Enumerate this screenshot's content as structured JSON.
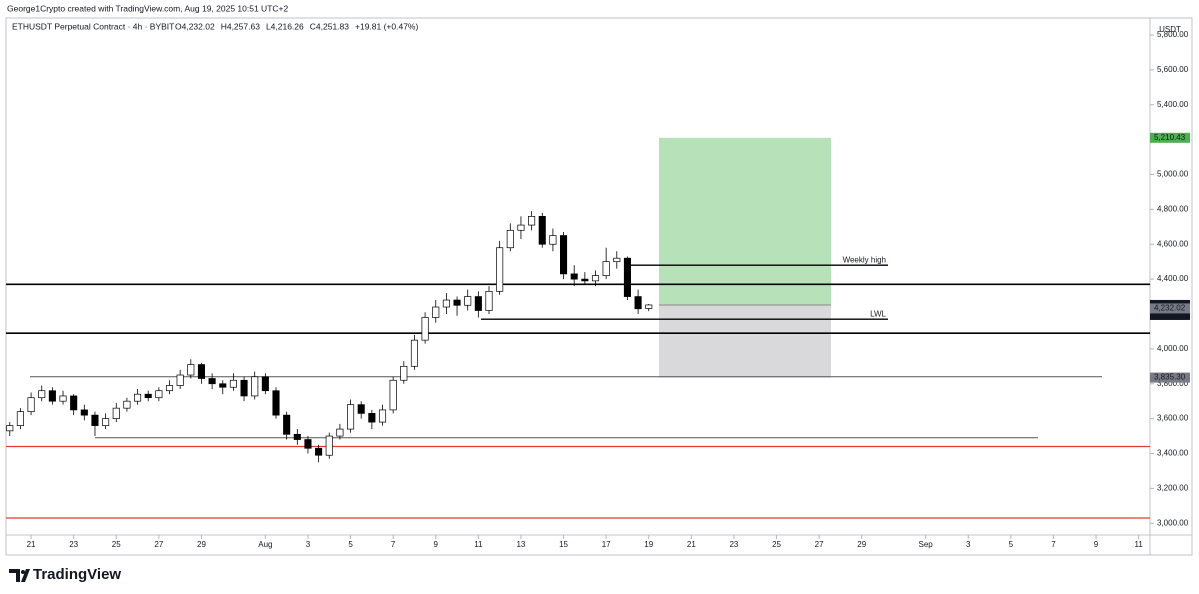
{
  "header": {
    "credit": "George1Crypto created with TradingView.com, Aug 19, 2025 10:51 UTC+2",
    "symbol": "ETHUSDT Perpetual Contract · 4h · BYBIT",
    "ohlc": [
      "O4,232.02",
      "H4,257.63",
      "L4,216.26",
      "C4,251.83",
      "+19.81 (+0.47%)"
    ]
  },
  "footer": {
    "logo": "TradingView"
  },
  "chart_data": {
    "type": "candlestick",
    "axis_unit": "USDT",
    "x": [
      -1,
      -0.5,
      0,
      0.5,
      1,
      1.5,
      2,
      2.5,
      3,
      3.5,
      4,
      4.5,
      5,
      5.5,
      6,
      6.5,
      7,
      7.5,
      8,
      8.5,
      9,
      9.5,
      10,
      10.5,
      11,
      11.5,
      12,
      12.5,
      13,
      13.5,
      14,
      14.5,
      15,
      15.5,
      16,
      16.5,
      17,
      17.5,
      18,
      18.5,
      19,
      19.5,
      20,
      20.5,
      21,
      21.5,
      22,
      22.5,
      23,
      23.5,
      24,
      24.5,
      25,
      25.5,
      26,
      26.5,
      27,
      27.5,
      28,
      28.5,
      29
    ],
    "open": [
      3530,
      3560,
      3640,
      3720,
      3760,
      3700,
      3730,
      3650,
      3620,
      3560,
      3600,
      3660,
      3700,
      3740,
      3720,
      3760,
      3790,
      3850,
      3910,
      3830,
      3800,
      3780,
      3820,
      3730,
      3840,
      3760,
      3620,
      3510,
      3480,
      3430,
      3390,
      3500,
      3540,
      3680,
      3630,
      3580,
      3650,
      3820,
      3900,
      4050,
      4180,
      4240,
      4280,
      4250,
      4300,
      4220,
      4330,
      4580,
      4680,
      4710,
      4760,
      4600,
      4650,
      4430,
      4400,
      4390,
      4420,
      4500,
      4520,
      4300,
      4232.02
    ],
    "high": [
      3580,
      3660,
      3750,
      3790,
      3780,
      3760,
      3740,
      3680,
      3640,
      3630,
      3690,
      3720,
      3770,
      3760,
      3780,
      3820,
      3880,
      3940,
      3920,
      3860,
      3820,
      3860,
      3840,
      3870,
      3860,
      3780,
      3640,
      3540,
      3500,
      3450,
      3520,
      3570,
      3710,
      3700,
      3650,
      3680,
      3840,
      3930,
      4080,
      4210,
      4280,
      4320,
      4300,
      4340,
      4330,
      4360,
      4620,
      4720,
      4760,
      4790,
      4780,
      4690,
      4670,
      4480,
      4440,
      4450,
      4580,
      4560,
      4530,
      4340,
      4257.63
    ],
    "low": [
      3500,
      3540,
      3620,
      3700,
      3680,
      3680,
      3620,
      3590,
      3500,
      3540,
      3580,
      3640,
      3680,
      3700,
      3700,
      3740,
      3770,
      3830,
      3800,
      3770,
      3740,
      3760,
      3700,
      3710,
      3740,
      3600,
      3480,
      3450,
      3400,
      3350,
      3370,
      3480,
      3520,
      3600,
      3540,
      3560,
      3630,
      3800,
      3880,
      4030,
      4150,
      4200,
      4190,
      4220,
      4180,
      4200,
      4310,
      4560,
      4630,
      4680,
      4580,
      4560,
      4400,
      4360,
      4370,
      4360,
      4400,
      4460,
      4280,
      4200,
      4216.26
    ],
    "close": [
      3560,
      3640,
      3720,
      3760,
      3700,
      3730,
      3650,
      3620,
      3560,
      3600,
      3660,
      3700,
      3740,
      3720,
      3760,
      3790,
      3850,
      3910,
      3830,
      3800,
      3780,
      3820,
      3730,
      3840,
      3760,
      3620,
      3510,
      3480,
      3430,
      3390,
      3500,
      3540,
      3680,
      3630,
      3580,
      3650,
      3820,
      3900,
      4050,
      4180,
      4240,
      4280,
      4250,
      4300,
      4220,
      4330,
      4580,
      4680,
      4710,
      4760,
      4600,
      4650,
      4430,
      4400,
      4390,
      4420,
      4500,
      4520,
      4300,
      4230,
      4251.83
    ],
    "xlim": [
      -1.13,
      52.44
    ],
    "xticks": [
      {
        "value": 0,
        "label": "21"
      },
      {
        "value": 2,
        "label": "23"
      },
      {
        "value": 4,
        "label": "25"
      },
      {
        "value": 6,
        "label": "27"
      },
      {
        "value": 8,
        "label": "29"
      },
      {
        "value": 11,
        "label": "Aug"
      },
      {
        "value": 13,
        "label": "3"
      },
      {
        "value": 15,
        "label": "5"
      },
      {
        "value": 17,
        "label": "7"
      },
      {
        "value": 19,
        "label": "9"
      },
      {
        "value": 21,
        "label": "11"
      },
      {
        "value": 23,
        "label": "13"
      },
      {
        "value": 25,
        "label": "15"
      },
      {
        "value": 27,
        "label": "17"
      },
      {
        "value": 29,
        "label": "19"
      },
      {
        "value": 31,
        "label": "21"
      },
      {
        "value": 33,
        "label": "23"
      },
      {
        "value": 35,
        "label": "25"
      },
      {
        "value": 37,
        "label": "27"
      },
      {
        "value": 39,
        "label": "29"
      },
      {
        "value": 42,
        "label": "Sep"
      },
      {
        "value": 44,
        "label": "3"
      },
      {
        "value": 46,
        "label": "5"
      },
      {
        "value": 48,
        "label": "7"
      },
      {
        "value": 50,
        "label": "9"
      },
      {
        "value": 52,
        "label": "11"
      }
    ],
    "ylim": [
      2967,
      5800
    ],
    "yticks": [
      {
        "value": 3000,
        "label": "3,000.00"
      },
      {
        "value": 3200,
        "label": "3,200.00"
      },
      {
        "value": 3400,
        "label": "3,400.00"
      },
      {
        "value": 3600,
        "label": "3,600.00"
      },
      {
        "value": 3800,
        "label": "3,800.00"
      },
      {
        "value": 4000,
        "label": "4,000.00"
      },
      {
        "value": 4200,
        "label": "4,200.00"
      },
      {
        "value": 4400,
        "label": "4,400.00"
      },
      {
        "value": 4600,
        "label": "4,600.00"
      },
      {
        "value": 4800,
        "label": "4,800.00"
      },
      {
        "value": 5000,
        "label": "5,000.00"
      },
      {
        "value": 5200,
        "label": "5,200.00"
      },
      {
        "value": 5400,
        "label": "5,400.00"
      },
      {
        "value": 5600,
        "label": "5,600.00"
      },
      {
        "value": 5800,
        "label": "5,800.00"
      }
    ],
    "levels": [
      {
        "price": 4370,
        "color": "#000000"
      },
      {
        "price": 4090,
        "color": "#000000"
      },
      {
        "price": 3840,
        "color": "#555555"
      },
      {
        "price": 3490,
        "color": "#555555"
      },
      {
        "price": 3440,
        "color": "#e53935"
      },
      {
        "price": 3030,
        "color": "#e53935"
      },
      {
        "price": 4480,
        "color": "#000000",
        "label": "Weekly high"
      },
      {
        "price": 4170,
        "color": "#000000",
        "label": "LWL"
      }
    ],
    "position": {
      "entry": 4251.83,
      "target": 5210.43,
      "stop": 3835.3,
      "profit_color": "#b7e1b9",
      "loss_color": "#d9d9db"
    },
    "price_labels": [
      {
        "value": 5210.43,
        "label": "5,210.43",
        "color": "#4caf50"
      },
      {
        "value": 4251.83,
        "label": "4,251.83",
        "sub": "03:08:15",
        "color": "#131722"
      },
      {
        "value": 4232.02,
        "label": "4,232.02",
        "color": "#787b86"
      },
      {
        "value": 3835.3,
        "label": "3,835.30",
        "color": "#787b86"
      }
    ]
  }
}
